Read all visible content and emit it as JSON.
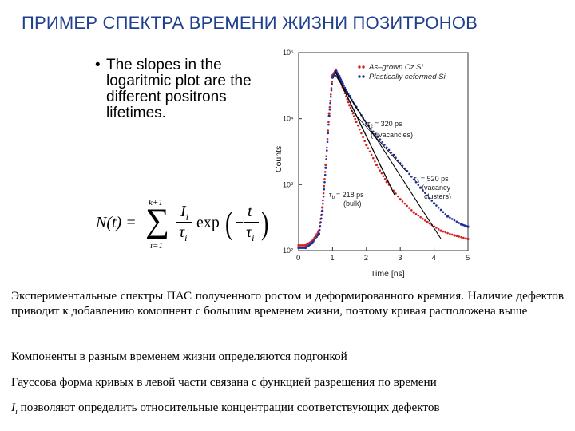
{
  "slide": {
    "title": "ПРИМЕР СПЕКТРА ВРЕМЕНИ ЖИЗНИ ПОЗИТРОНОВ",
    "bullet": "The slopes in the logaritmic plot are the different positrons lifetimes.",
    "formula": {
      "lhs": "N(t) =",
      "sum_top": "k+1",
      "sum_bottom": "i=1",
      "sum_symbol": "∑",
      "numerator": "I",
      "numerator_sub": "i",
      "denominator": "τ",
      "denominator_sub": "i",
      "exp": "exp",
      "inner_num": "t",
      "inner_den": "τ",
      "inner_den_sub": "i",
      "minus": "−"
    },
    "paragraphs": [
      "Экспериментальные спектры ПАС полученного ростом и деформированного кремния. Наличие дефектов приводит к добавлению комопнент с большим временем жизни, поэтому кривая расположена выше",
      "Компоненты в разным временем жизни определяются подгонкой",
      "Гауссова форма кривых в левой части связана с функцией разрешения по времени"
    ],
    "last_paragraph": {
      "symbol": "I",
      "symbol_sub": "i",
      "text": " позволяют определить относительные концентрации соответствующих дефектов"
    },
    "title_color": "#1f3f8f"
  },
  "chart_data": {
    "type": "line",
    "xlabel": "Time [ns]",
    "ylabel": "Counts",
    "xlim": [
      0,
      5
    ],
    "ylim": [
      100,
      100000
    ],
    "yscale": "log",
    "xticks": [
      "0",
      "1",
      "2",
      "3",
      "4",
      "5"
    ],
    "yticks": [
      "10²",
      "10³",
      "10⁴",
      "10⁵"
    ],
    "legend_position": "top-right",
    "series": [
      {
        "name": "As–grown Cz Si",
        "color": "#d42020",
        "x": [
          0.0,
          0.2,
          0.4,
          0.6,
          0.7,
          0.8,
          0.9,
          1.0,
          1.1,
          1.2,
          1.3,
          1.5,
          1.7,
          2.0,
          2.3,
          2.6,
          3.0,
          3.4,
          3.8,
          4.2,
          4.6,
          5.0
        ],
        "y": [
          120,
          120,
          140,
          200,
          450,
          2000,
          12000,
          45000,
          55000,
          42000,
          30000,
          16000,
          9000,
          4000,
          2000,
          1100,
          600,
          380,
          270,
          200,
          170,
          150
        ]
      },
      {
        "name": "Plastically ceformed Si",
        "color": "#1f2f9a",
        "x": [
          0.0,
          0.2,
          0.4,
          0.6,
          0.7,
          0.8,
          0.9,
          1.0,
          1.1,
          1.2,
          1.3,
          1.5,
          1.7,
          2.0,
          2.4,
          2.8,
          3.2,
          3.6,
          4.0,
          4.4,
          4.8,
          5.0
        ],
        "y": [
          110,
          110,
          130,
          180,
          400,
          1800,
          11000,
          42000,
          52000,
          44000,
          34000,
          22000,
          15000,
          8500,
          4800,
          2800,
          1600,
          900,
          520,
          330,
          250,
          230
        ]
      }
    ],
    "annotations": [
      {
        "label": "τ",
        "sub": "2",
        "value": "= 320 ps",
        "note": "(divacancies)"
      },
      {
        "label": "τ",
        "sub": "3",
        "value": "= 520 ps",
        "note1": "(vacancy",
        "note2": "clusters)"
      },
      {
        "label": "τ",
        "sub": "b",
        "value": "= 218 ps",
        "note": "(bulk)"
      }
    ]
  }
}
